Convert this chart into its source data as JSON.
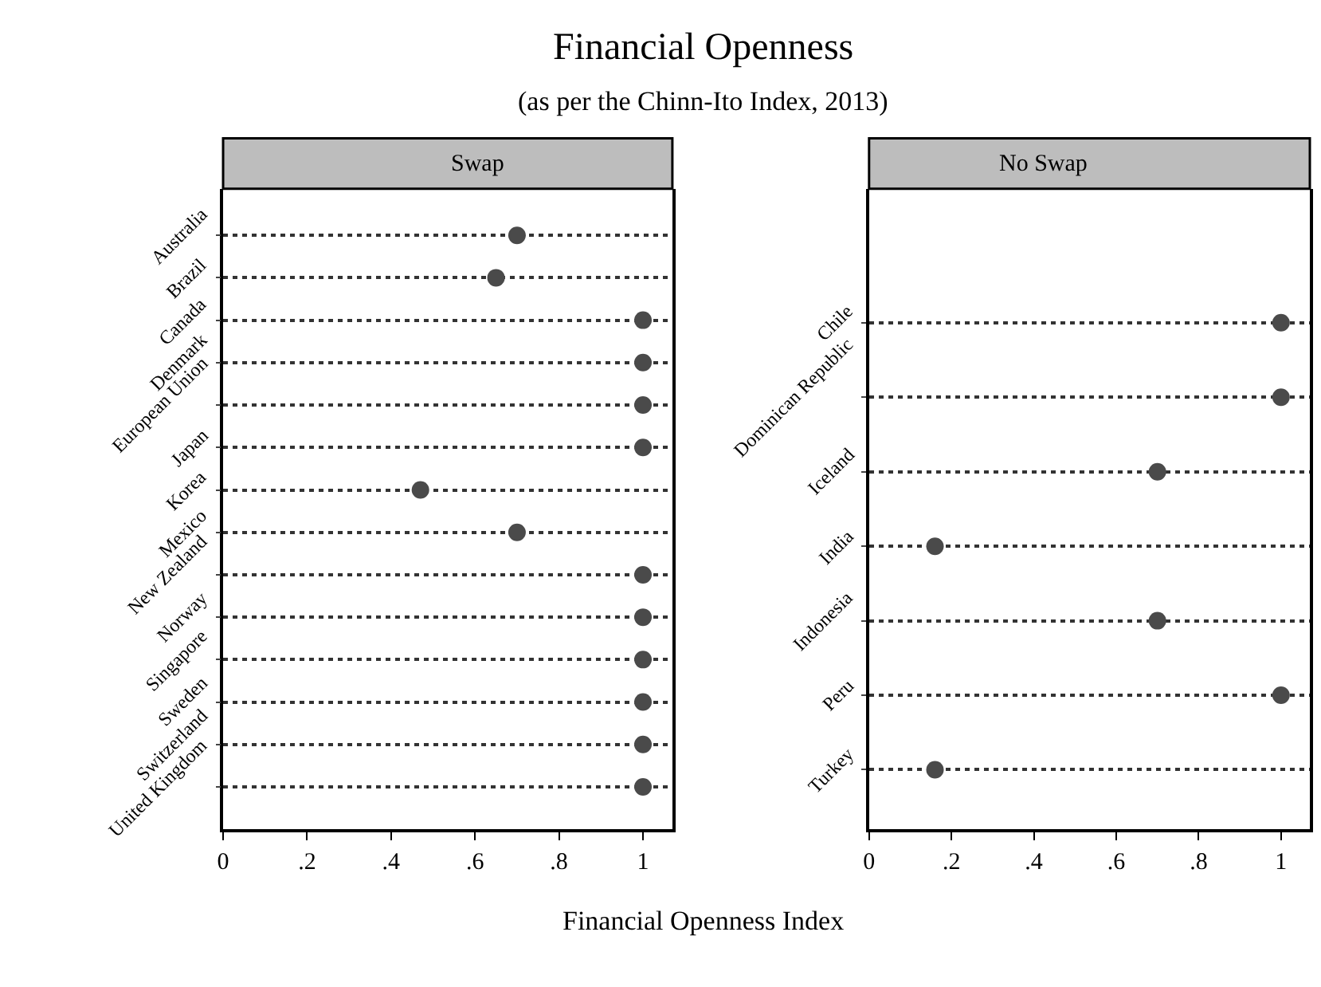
{
  "chart_data": [
    {
      "type": "scatter",
      "title": "Swap",
      "xlabel": "Financial Openness Index",
      "annotations": [
        "Financial Openness",
        "(as per the Chinn-Ito Index, 2013)"
      ],
      "categories": [
        "Australia",
        "Brazil",
        "Canada",
        "Denmark",
        "European Union",
        "Japan",
        "Korea",
        "Mexico",
        "New Zealand",
        "Norway",
        "Singapore",
        "Sweden",
        "Switzerland",
        "United Kingdom"
      ],
      "values": [
        0.7,
        0.65,
        1,
        1,
        1,
        1,
        0.47,
        0.7,
        1,
        1,
        1,
        1,
        1,
        1
      ],
      "color": "#4a4a4a",
      "xlim": [
        0,
        1.07
      ],
      "xticks": [
        {
          "value": 0,
          "label": "0"
        },
        {
          "value": 0.2,
          "label": ".2"
        },
        {
          "value": 0.4,
          "label": ".4"
        },
        {
          "value": 0.6,
          "label": ".6"
        },
        {
          "value": 0.8,
          "label": ".8"
        },
        {
          "value": 1,
          "label": "1"
        }
      ],
      "grid": "y",
      "marker": "circle",
      "orientation": "horizontal",
      "legend": false
    },
    {
      "type": "scatter",
      "title": "No Swap",
      "categories": [
        "Chile",
        "Dominican Republic",
        "Iceland",
        "India",
        "Indonesia",
        "Peru",
        "Turkey"
      ],
      "values": [
        1,
        1,
        0.7,
        0.16,
        0.7,
        1,
        0.16
      ],
      "color": "#4a4a4a",
      "xlim": [
        0,
        1.07
      ],
      "xticks": [
        {
          "value": 0,
          "label": "0"
        },
        {
          "value": 0.2,
          "label": ".2"
        },
        {
          "value": 0.4,
          "label": ".4"
        },
        {
          "value": 0.6,
          "label": ".6"
        },
        {
          "value": 0.8,
          "label": ".8"
        },
        {
          "value": 1,
          "label": "1"
        }
      ],
      "grid": "y",
      "marker": "circle",
      "orientation": "horizontal",
      "legend": false
    }
  ]
}
